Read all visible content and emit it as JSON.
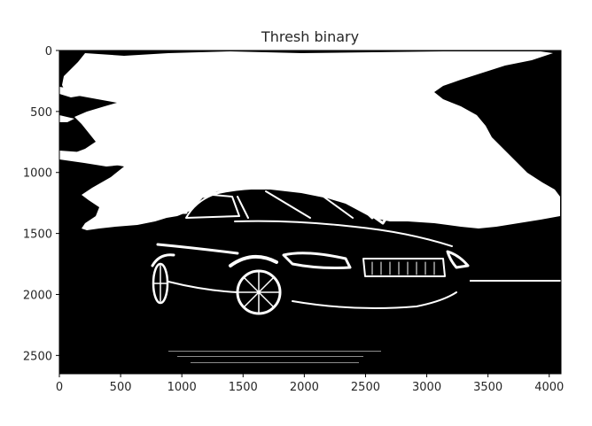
{
  "chart_data": {
    "type": "image",
    "title": "Thresh binary",
    "xlabel": "",
    "ylabel": "",
    "xlim": [
      0,
      4096
    ],
    "ylim": [
      2650,
      0
    ],
    "x_ticks": [
      0,
      500,
      1000,
      1500,
      2000,
      2500,
      3000,
      3500,
      4000
    ],
    "y_ticks": [
      0,
      500,
      1000,
      1500,
      2000,
      2500
    ],
    "x_tick_labels": [
      "0",
      "500",
      "1000",
      "1500",
      "2000",
      "2500",
      "3000",
      "3500",
      "4000"
    ],
    "y_tick_labels": [
      "0",
      "500",
      "1000",
      "1500",
      "2000",
      "2500"
    ],
    "grid": false,
    "legend": "none",
    "colors": {
      "foreground": "#ffffff",
      "background": "#000000",
      "axes": "#262626"
    }
  }
}
